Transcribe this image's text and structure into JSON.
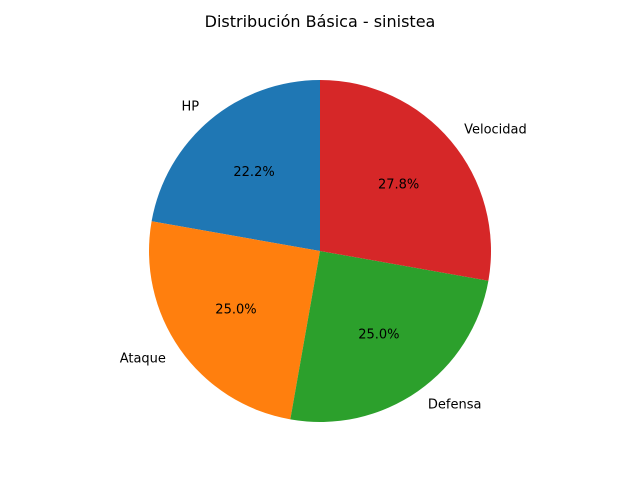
{
  "chart_data": {
    "type": "pie",
    "title": "Distribución Básica - sinistea",
    "categories": [
      "HP",
      "Ataque",
      "Defensa",
      "Velocidad"
    ],
    "values": [
      40,
      45,
      45,
      50
    ],
    "percent_labels": [
      "22.2%",
      "25.0%",
      "25.0%",
      "27.8%"
    ],
    "colors": [
      "#1f77b4",
      "#ff7f0e",
      "#2ca02c",
      "#d62728"
    ],
    "start_angle_deg": 90,
    "direction": "counterclockwise",
    "legend": "none"
  }
}
